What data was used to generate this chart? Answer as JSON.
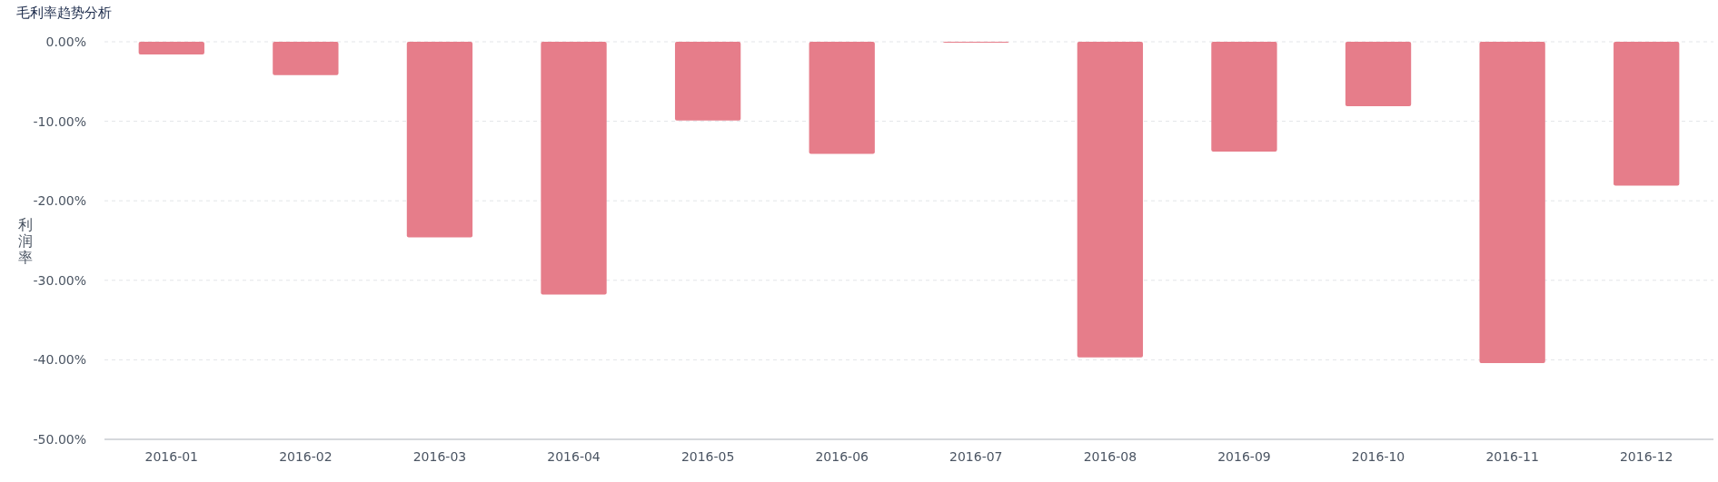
{
  "chart_data": {
    "type": "bar",
    "title": "毛利率趋势分析",
    "ylabel": "利润率",
    "categories": [
      "2016-01",
      "2016-02",
      "2016-03",
      "2016-04",
      "2016-05",
      "2016-06",
      "2016-07",
      "2016-08",
      "2016-09",
      "2016-10",
      "2016-11",
      "2016-12"
    ],
    "values": [
      -1.6,
      -4.2,
      -24.6,
      -31.8,
      -9.9,
      -14.1,
      -0.1,
      -39.7,
      -13.8,
      -8.1,
      -40.4,
      -18.1
    ],
    "color": "#e67d8a",
    "ylim": [
      -50,
      0
    ],
    "yticks": [
      {
        "value": 0,
        "label": "0.00%"
      },
      {
        "value": -10,
        "label": "-10.00%"
      },
      {
        "value": -20,
        "label": "-20.00%"
      },
      {
        "value": -30,
        "label": "-30.00%"
      },
      {
        "value": -40,
        "label": "-40.00%"
      },
      {
        "value": -50,
        "label": "-50.00%"
      }
    ],
    "grid": "y"
  }
}
